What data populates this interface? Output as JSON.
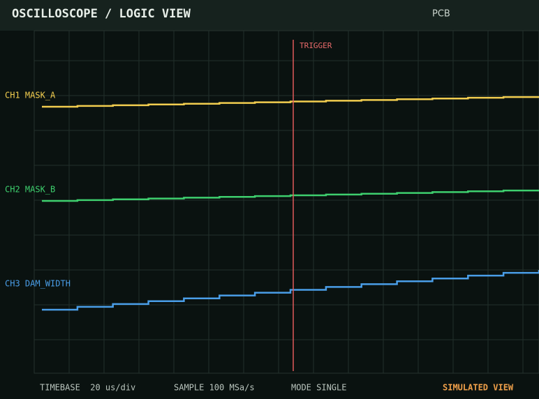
{
  "header": {
    "title": "OSCILLOSCOPE / LOGIC VIEW",
    "badge": "PCB"
  },
  "trigger": {
    "label": "TRIGGER"
  },
  "channels": [
    {
      "label": "CH1 MASK_A",
      "color": "#f2cd4f"
    },
    {
      "label": "CH2 MASK_B",
      "color": "#3ecf6e"
    },
    {
      "label": "CH3 DAM_WIDTH",
      "color": "#4a9ee8"
    }
  ],
  "footer": {
    "items": [
      "TIMEBASE  20 us/div",
      "SAMPLE 100 MSa/s",
      "MODE SINGLE"
    ],
    "status": "SIMULATED VIEW"
  }
}
